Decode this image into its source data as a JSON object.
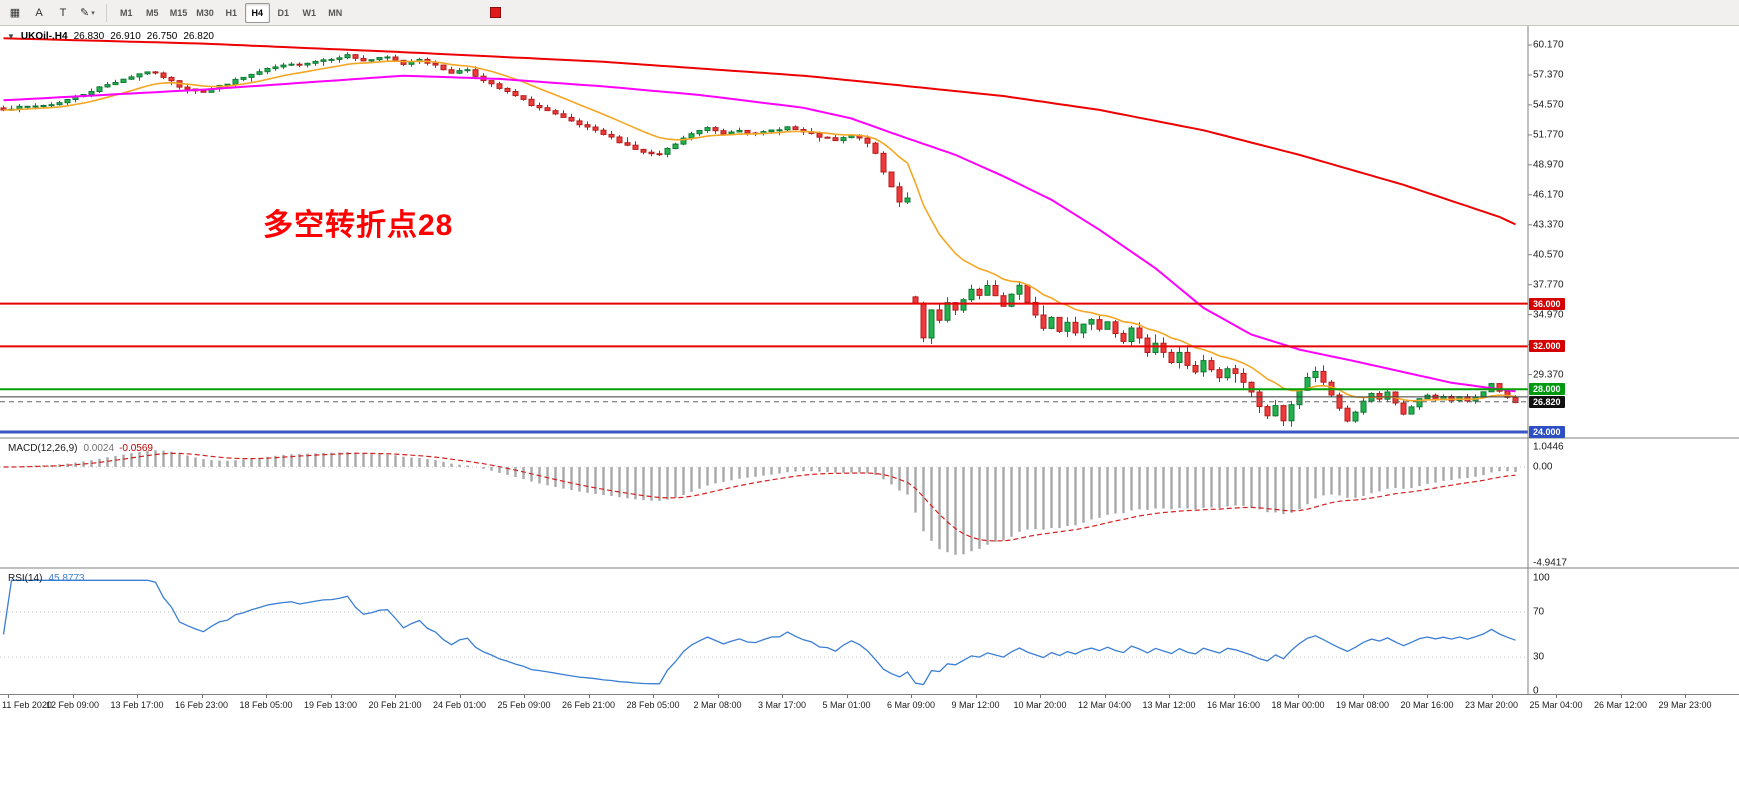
{
  "toolbar": {
    "tools": [
      {
        "name": "chart-grid-icon",
        "glyph": "▦"
      },
      {
        "name": "text-tool-icon",
        "glyph": "A"
      },
      {
        "name": "trendline-tool-icon",
        "glyph": "T"
      },
      {
        "name": "draw-tool-icon",
        "glyph": "✎",
        "dropdown": true
      }
    ],
    "timeframes": [
      "M1",
      "M5",
      "M15",
      "M30",
      "H1",
      "H4",
      "D1",
      "W1",
      "MN"
    ],
    "active_timeframe": "H4"
  },
  "chart": {
    "symbol_panel": {
      "collapse_icon": "▼",
      "symbol": "UKOil-,H4",
      "open": "26.830",
      "high": "26.910",
      "low": "26.750",
      "close": "26.820"
    },
    "annotation": {
      "text": "多空转折点28",
      "color": "#ff0000"
    },
    "axis_labels": [
      "60.170",
      "57.370",
      "54.570",
      "51.770",
      "48.970",
      "46.170",
      "43.370",
      "40.570",
      "37.770",
      "34.970",
      "32.170",
      "29.370"
    ],
    "hlines": [
      {
        "price": 36.0,
        "label": "36.000",
        "color": "#e60000",
        "width": 2,
        "badge_bg": "#d40000"
      },
      {
        "price": 32.0,
        "label": "32.000",
        "color": "#e60000",
        "width": 2,
        "badge_bg": "#d40000"
      },
      {
        "price": 28.0,
        "label": "28.000",
        "color": "#00a000",
        "width": 2,
        "badge_bg": "#00990f"
      },
      {
        "price": 27.28,
        "label": "",
        "color": "#3a3a3a",
        "width": 1
      },
      {
        "price": 26.82,
        "label": "26.820",
        "color": "#666666",
        "width": 1,
        "dashed": true,
        "badge_bg": "#111111"
      },
      {
        "price": 24.0,
        "label": "24.000",
        "color": "#3857c8",
        "width": 3,
        "badge_bg": "#2d4fc4"
      }
    ],
    "colors": {
      "candle_up": "#22b14c",
      "candle_up_stroke": "#0e7a33",
      "candle_down": "#ed3a3a",
      "candle_down_stroke": "#b71c1c",
      "ma_fast": "#f5a623",
      "ma_mid": "#ff00ff",
      "ma_slow": "#ee0000",
      "macd_hist": "#a8a8a8",
      "macd_signal": "#d32222",
      "rsi_line": "#3b7fd4"
    }
  },
  "macd": {
    "title": "MACD(12,26,9)",
    "main_value": "0.0024",
    "signal_value": "-0.0569",
    "axis_labels": [
      "1.0446",
      "0.00",
      "-4.9417"
    ]
  },
  "rsi": {
    "title": "RSI(14)",
    "value": "45.8773",
    "axis_labels": [
      "100",
      "70",
      "30",
      "0"
    ]
  },
  "time_axis": {
    "labels": [
      "11 Feb 2020",
      "12 Feb 09:00",
      "13 Feb 17:00",
      "16 Feb 23:00",
      "18 Feb 05:00",
      "19 Feb 13:00",
      "20 Feb 21:00",
      "24 Feb 01:00",
      "25 Feb 09:00",
      "26 Feb 21:00",
      "28 Feb 05:00",
      "2 Mar 08:00",
      "3 Mar 17:00",
      "5 Mar 01:00",
      "6 Mar 09:00",
      "9 Mar 12:00",
      "10 Mar 20:00",
      "12 Mar 04:00",
      "13 Mar 12:00",
      "16 Mar 16:00",
      "18 Mar 00:00",
      "19 Mar 08:00",
      "20 Mar 16:00",
      "23 Mar 20:00",
      "25 Mar 04:00",
      "26 Mar 12:00",
      "29 Mar 23:00"
    ]
  },
  "chart_data": {
    "type": "candlestick",
    "symbol": "UKOil",
    "timeframe": "H4",
    "bars": 190,
    "seed": 7,
    "price_axis_range": [
      23.5,
      62.0
    ],
    "visible_price_levels": [
      36.0,
      32.0,
      28.0,
      24.0
    ],
    "last_price": 26.82,
    "price_anchors": [
      [
        0,
        54.2
      ],
      [
        3,
        54.4
      ],
      [
        6,
        54.6
      ],
      [
        9,
        55.3
      ],
      [
        12,
        56.2
      ],
      [
        15,
        57.0
      ],
      [
        18,
        57.7
      ],
      [
        20,
        57.2
      ],
      [
        22,
        56.3
      ],
      [
        25,
        55.8
      ],
      [
        28,
        56.6
      ],
      [
        31,
        57.4
      ],
      [
        34,
        58.1
      ],
      [
        37,
        58.4
      ],
      [
        40,
        58.8
      ],
      [
        43,
        59.2
      ],
      [
        45,
        58.7
      ],
      [
        48,
        59.0
      ],
      [
        50,
        58.4
      ],
      [
        52,
        58.9
      ],
      [
        54,
        58.2
      ],
      [
        56,
        57.6
      ],
      [
        58,
        57.9
      ],
      [
        60,
        56.8
      ],
      [
        62,
        56.1
      ],
      [
        64,
        55.4
      ],
      [
        66,
        54.6
      ],
      [
        68,
        54.0
      ],
      [
        70,
        53.3
      ],
      [
        72,
        52.7
      ],
      [
        74,
        52.1
      ],
      [
        76,
        51.5
      ],
      [
        78,
        50.8
      ],
      [
        80,
        50.1
      ],
      [
        82,
        49.9
      ],
      [
        84,
        50.9
      ],
      [
        86,
        51.9
      ],
      [
        88,
        52.4
      ],
      [
        90,
        51.9
      ],
      [
        92,
        52.3
      ],
      [
        94,
        51.8
      ],
      [
        96,
        52.2
      ],
      [
        98,
        52.5
      ],
      [
        100,
        52.0
      ],
      [
        102,
        51.6
      ],
      [
        104,
        51.2
      ],
      [
        106,
        51.7
      ],
      [
        108,
        51.1
      ],
      [
        109,
        49.9
      ],
      [
        110,
        48.3
      ],
      [
        111,
        46.9
      ],
      [
        112,
        45.6
      ],
      [
        113,
        45.9
      ],
      [
        114,
        36.2
      ],
      [
        115,
        32.6
      ],
      [
        116,
        35.2
      ],
      [
        117,
        34.3
      ],
      [
        118,
        36.0
      ],
      [
        119,
        35.1
      ],
      [
        120,
        36.3
      ],
      [
        121,
        37.2
      ],
      [
        122,
        36.5
      ],
      [
        123,
        37.7
      ],
      [
        124,
        36.9
      ],
      [
        125,
        35.7
      ],
      [
        126,
        36.7
      ],
      [
        127,
        37.5
      ],
      [
        128,
        36.3
      ],
      [
        129,
        34.9
      ],
      [
        130,
        33.7
      ],
      [
        131,
        34.7
      ],
      [
        132,
        33.6
      ],
      [
        133,
        34.4
      ],
      [
        134,
        33.3
      ],
      [
        135,
        34.1
      ],
      [
        136,
        34.7
      ],
      [
        137,
        33.9
      ],
      [
        138,
        34.5
      ],
      [
        139,
        33.5
      ],
      [
        140,
        32.7
      ],
      [
        141,
        33.5
      ],
      [
        142,
        32.5
      ],
      [
        143,
        31.7
      ],
      [
        144,
        32.5
      ],
      [
        145,
        31.5
      ],
      [
        146,
        30.5
      ],
      [
        147,
        31.3
      ],
      [
        148,
        30.3
      ],
      [
        149,
        29.7
      ],
      [
        150,
        30.5
      ],
      [
        151,
        29.7
      ],
      [
        152,
        28.9
      ],
      [
        153,
        29.9
      ],
      [
        154,
        29.3
      ],
      [
        155,
        28.7
      ],
      [
        156,
        27.7
      ],
      [
        157,
        26.5
      ],
      [
        158,
        25.5
      ],
      [
        159,
        26.3
      ],
      [
        160,
        25.3
      ],
      [
        161,
        26.7
      ],
      [
        162,
        27.7
      ],
      [
        163,
        28.9
      ],
      [
        164,
        29.5
      ],
      [
        165,
        28.7
      ],
      [
        166,
        27.5
      ],
      [
        167,
        26.1
      ],
      [
        168,
        25.1
      ],
      [
        169,
        25.9
      ],
      [
        170,
        26.9
      ],
      [
        171,
        27.5
      ],
      [
        172,
        27.1
      ],
      [
        173,
        27.6
      ],
      [
        174,
        26.7
      ],
      [
        175,
        25.7
      ],
      [
        176,
        26.4
      ],
      [
        177,
        27.1
      ],
      [
        178,
        27.5
      ],
      [
        179,
        26.9
      ],
      [
        180,
        27.3
      ],
      [
        181,
        26.8
      ],
      [
        182,
        27.2
      ],
      [
        183,
        26.9
      ],
      [
        184,
        27.3
      ],
      [
        185,
        27.7
      ],
      [
        186,
        28.4
      ],
      [
        187,
        27.8
      ],
      [
        188,
        27.2
      ],
      [
        189,
        26.85
      ]
    ],
    "ma_fast_period": 13,
    "ma_magenta_anchors": [
      [
        0,
        55.0
      ],
      [
        25,
        56.0
      ],
      [
        50,
        57.3
      ],
      [
        62,
        57.0
      ],
      [
        75,
        56.3
      ],
      [
        87,
        55.5
      ],
      [
        100,
        54.3
      ],
      [
        106,
        53.3
      ],
      [
        112,
        51.7
      ],
      [
        119,
        49.9
      ],
      [
        125,
        47.9
      ],
      [
        131,
        45.7
      ],
      [
        137,
        42.9
      ],
      [
        144,
        39.3
      ],
      [
        150,
        35.6
      ],
      [
        156,
        33.1
      ],
      [
        162,
        31.7
      ],
      [
        169,
        30.6
      ],
      [
        175,
        29.6
      ],
      [
        181,
        28.6
      ],
      [
        189,
        27.8
      ]
    ],
    "ma_red_anchors": [
      [
        0,
        60.8
      ],
      [
        25,
        60.3
      ],
      [
        50,
        59.5
      ],
      [
        75,
        58.6
      ],
      [
        100,
        57.3
      ],
      [
        112,
        56.4
      ],
      [
        125,
        55.4
      ],
      [
        137,
        54.1
      ],
      [
        150,
        52.2
      ],
      [
        162,
        49.9
      ],
      [
        175,
        47.1
      ],
      [
        187,
        44.1
      ],
      [
        189,
        43.4
      ]
    ],
    "macd_params": [
      12,
      26,
      9
    ],
    "macd_axis_min": -4.9417,
    "macd_axis_top_label": 1.0446,
    "rsi_period": 14,
    "rsi_levels": [
      70,
      30
    ]
  }
}
